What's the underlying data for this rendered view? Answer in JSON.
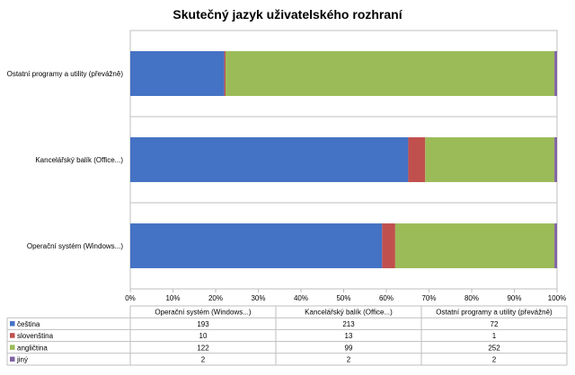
{
  "chart_data": {
    "type": "bar",
    "orientation": "horizontal",
    "stacking": "percent",
    "title": "Skutečný jazyk uživatelského rozhraní",
    "categories": [
      "Operační systém (Windows...)",
      "Kancelářský balík (Office...)",
      "Ostatní programy a utility (převážně)"
    ],
    "axis_ticks": [
      "0%",
      "10%",
      "20%",
      "30%",
      "40%",
      "50%",
      "60%",
      "70%",
      "80%",
      "90%",
      "100%"
    ],
    "xlim": [
      0,
      100
    ],
    "grid": true,
    "legend": "data-table-below",
    "series": [
      {
        "name": "čeština",
        "color": "#4472C4",
        "values": [
          193,
          213,
          72
        ]
      },
      {
        "name": "slovenština",
        "color": "#C0504D",
        "values": [
          10,
          13,
          1
        ]
      },
      {
        "name": "angličtina",
        "color": "#9BBB59",
        "values": [
          122,
          99,
          252
        ]
      },
      {
        "name": "jiný",
        "color": "#8064A2",
        "values": [
          2,
          2,
          2
        ]
      }
    ],
    "table": {
      "headers": [
        "Operační systém (Windows...)",
        "Kancelářský balík (Office...)",
        "Ostatní programy a utility (převážně)"
      ]
    }
  }
}
